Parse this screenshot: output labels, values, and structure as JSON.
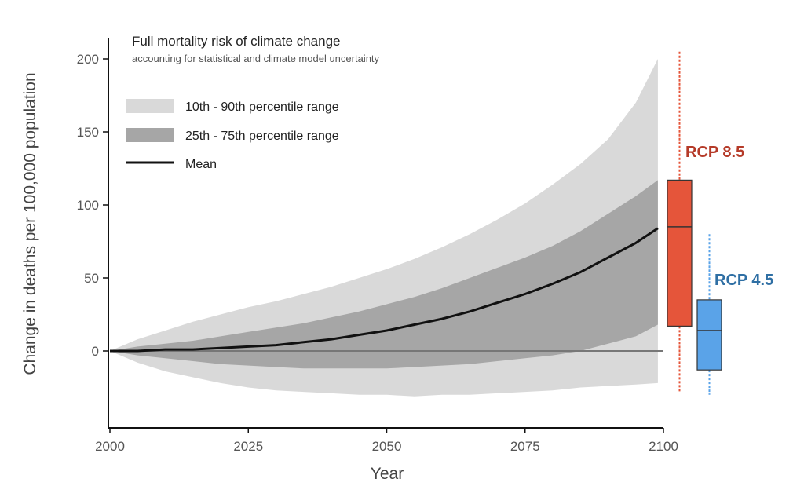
{
  "chart_data": {
    "type": "area",
    "title": "Full mortality risk of climate change",
    "subtitle": "accounting for statistical and climate model uncertainty",
    "xlabel": "Year",
    "ylabel": "Change in deaths per 100,000 population",
    "xlim": [
      2000,
      2100
    ],
    "ylim": [
      -50,
      205
    ],
    "x_ticks": [
      "2000",
      "2025",
      "2050",
      "2075",
      "2100"
    ],
    "y_ticks": [
      "0",
      "50",
      "100",
      "150",
      "200"
    ],
    "legend": {
      "placement": "top-left",
      "items": [
        {
          "label": "10th - 90th percentile range",
          "color": "#d9d9d9"
        },
        {
          "label": "25th - 75th percentile range",
          "color": "#a6a6a6"
        },
        {
          "label": "Mean",
          "color": "#000000"
        }
      ]
    },
    "x": [
      2000,
      2005,
      2010,
      2015,
      2020,
      2025,
      2030,
      2035,
      2040,
      2045,
      2050,
      2055,
      2060,
      2065,
      2070,
      2075,
      2080,
      2085,
      2090,
      2095,
      2099
    ],
    "series": [
      {
        "name": "Mean",
        "values": [
          0,
          0,
          1,
          1,
          2,
          3,
          4,
          6,
          8,
          11,
          14,
          18,
          22,
          27,
          33,
          39,
          46,
          54,
          64,
          74,
          84
        ]
      },
      {
        "name": "25th percentile",
        "values": [
          0,
          -3,
          -5,
          -7,
          -9,
          -10,
          -11,
          -12,
          -12,
          -12,
          -12,
          -11,
          -10,
          -9,
          -7,
          -5,
          -3,
          0,
          5,
          10,
          18
        ]
      },
      {
        "name": "75th percentile",
        "values": [
          0,
          3,
          5,
          7,
          10,
          13,
          16,
          19,
          23,
          27,
          32,
          37,
          43,
          50,
          57,
          64,
          72,
          82,
          94,
          106,
          117
        ]
      },
      {
        "name": "10th percentile",
        "values": [
          0,
          -8,
          -14,
          -18,
          -22,
          -25,
          -27,
          -28,
          -29,
          -30,
          -30,
          -31,
          -30,
          -30,
          -29,
          -28,
          -27,
          -25,
          -24,
          -23,
          -22
        ]
      },
      {
        "name": "90th percentile",
        "values": [
          0,
          8,
          14,
          20,
          25,
          30,
          34,
          39,
          44,
          50,
          56,
          63,
          71,
          80,
          90,
          101,
          114,
          128,
          145,
          170,
          200
        ]
      }
    ],
    "boxplots": [
      {
        "label": "RCP 8.5",
        "color": "#e5553a",
        "label_color": "#b53a28",
        "whisker_low": -28,
        "q1": 17,
        "median": 85,
        "q3": 117,
        "whisker_high": 205
      },
      {
        "label": "RCP 4.5",
        "color": "#5aa3e8",
        "label_color": "#2f6fa4",
        "whisker_low": -30,
        "q1": -13,
        "median": 14,
        "q3": 35,
        "whisker_high": 80
      }
    ]
  }
}
